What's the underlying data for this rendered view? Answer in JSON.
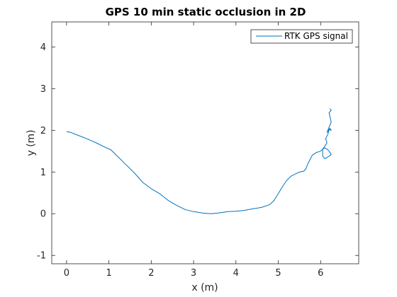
{
  "chart_data": {
    "type": "line",
    "title": "GPS 10 min static occlusion in 2D",
    "xlabel": "x (m)",
    "ylabel": "y (m)",
    "xlim": [
      -0.35,
      6.9
    ],
    "ylim": [
      -1.2,
      4.6
    ],
    "xticks": [
      0,
      1,
      2,
      3,
      4,
      5,
      6
    ],
    "yticks": [
      -1,
      0,
      1,
      2,
      3,
      4
    ],
    "xtick_labels": [
      "0",
      "1",
      "2",
      "3",
      "4",
      "5",
      "6"
    ],
    "ytick_labels": [
      "-1",
      "0",
      "1",
      "2",
      "3",
      "4"
    ],
    "grid": false,
    "legend_position": "top-right",
    "line_color": "#0072bd",
    "series": [
      {
        "name": "RTK GPS signal",
        "x": [
          0.0,
          0.1,
          0.3,
          0.5,
          0.7,
          0.9,
          1.05,
          1.2,
          1.4,
          1.6,
          1.8,
          2.0,
          2.2,
          2.4,
          2.6,
          2.8,
          3.0,
          3.2,
          3.4,
          3.6,
          3.8,
          4.0,
          4.2,
          4.4,
          4.6,
          4.8,
          4.9,
          5.0,
          5.1,
          5.2,
          5.3,
          5.4,
          5.5,
          5.6,
          5.65,
          5.7,
          5.75,
          5.8,
          5.9,
          6.0,
          6.05,
          6.1,
          6.15,
          6.2,
          6.25,
          6.2,
          6.1,
          6.05,
          6.05,
          6.1,
          6.15,
          6.12,
          6.18,
          6.2,
          6.25,
          6.22,
          6.15,
          6.25,
          6.22,
          6.2,
          6.25,
          6.22
        ],
        "y": [
          1.97,
          1.95,
          1.87,
          1.79,
          1.7,
          1.6,
          1.53,
          1.38,
          1.18,
          0.98,
          0.75,
          0.6,
          0.48,
          0.32,
          0.2,
          0.1,
          0.05,
          0.02,
          0.0,
          0.02,
          0.05,
          0.06,
          0.08,
          0.12,
          0.15,
          0.22,
          0.32,
          0.48,
          0.65,
          0.8,
          0.9,
          0.95,
          1.0,
          1.02,
          1.07,
          1.2,
          1.3,
          1.4,
          1.47,
          1.5,
          1.55,
          1.58,
          1.55,
          1.5,
          1.42,
          1.38,
          1.32,
          1.38,
          1.55,
          1.62,
          1.7,
          1.8,
          1.93,
          2.02,
          2.0,
          2.05,
          1.95,
          2.2,
          2.33,
          2.42,
          2.48,
          2.52
        ]
      }
    ]
  }
}
